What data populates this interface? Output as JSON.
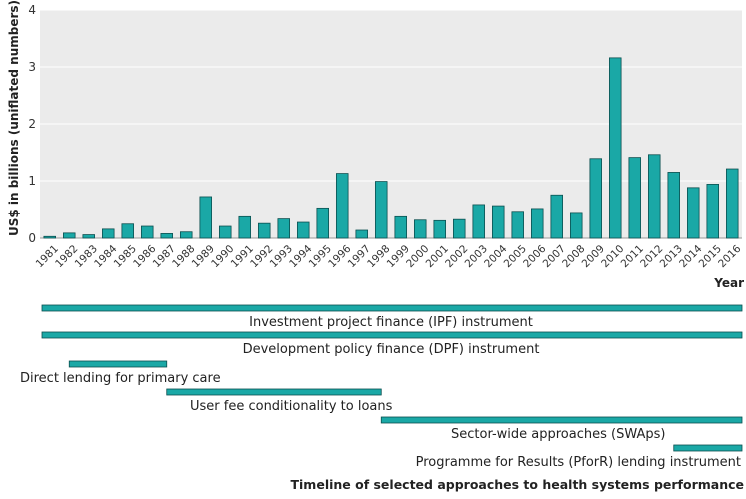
{
  "chart_data": {
    "type": "bar",
    "ylabel": "US$ in billions (uniflated numbers)",
    "xlabel": "Year",
    "ylim": [
      0,
      4
    ],
    "yticks": [
      0,
      1,
      2,
      3,
      4
    ],
    "grid": "horizontal",
    "bar_color": "#1aa8a6",
    "categories": [
      "1981",
      "1982",
      "1983",
      "1984",
      "1985",
      "1986",
      "1987",
      "1988",
      "1989",
      "1990",
      "1991",
      "1992",
      "1993",
      "1994",
      "1995",
      "1996",
      "1997",
      "1998",
      "1999",
      "2000",
      "2001",
      "2002",
      "2003",
      "2004",
      "2005",
      "2006",
      "2007",
      "2008",
      "2009",
      "2010",
      "2011",
      "2012",
      "2013",
      "2014",
      "2015",
      "2016"
    ],
    "values": [
      0.03,
      0.09,
      0.06,
      0.16,
      0.25,
      0.21,
      0.08,
      0.11,
      0.72,
      0.21,
      0.38,
      0.26,
      0.34,
      0.28,
      0.52,
      1.13,
      0.14,
      0.99,
      0.38,
      0.32,
      0.31,
      0.33,
      0.58,
      0.56,
      0.46,
      0.51,
      0.75,
      0.44,
      1.39,
      3.16,
      1.41,
      1.46,
      1.15,
      0.88,
      0.94,
      1.21
    ]
  },
  "timeline": {
    "caption": "Timeline of selected approaches to health systems performance",
    "items": [
      {
        "label": "Investment project finance (IPF) instrument",
        "start": 1981,
        "end": 2016
      },
      {
        "label": "Development policy finance (DPF) instrument",
        "start": 1981,
        "end": 2016
      },
      {
        "label": "Direct lending for primary care",
        "start": 1982,
        "end": 1987
      },
      {
        "label": "User fee conditionality to loans",
        "start": 1987,
        "end": 1998
      },
      {
        "label": "Sector-wide approaches (SWAps)",
        "start": 1998,
        "end": 2016
      },
      {
        "label": "Programme for Results (PforR) lending instrument",
        "start": 2013,
        "end": 2016
      }
    ]
  }
}
